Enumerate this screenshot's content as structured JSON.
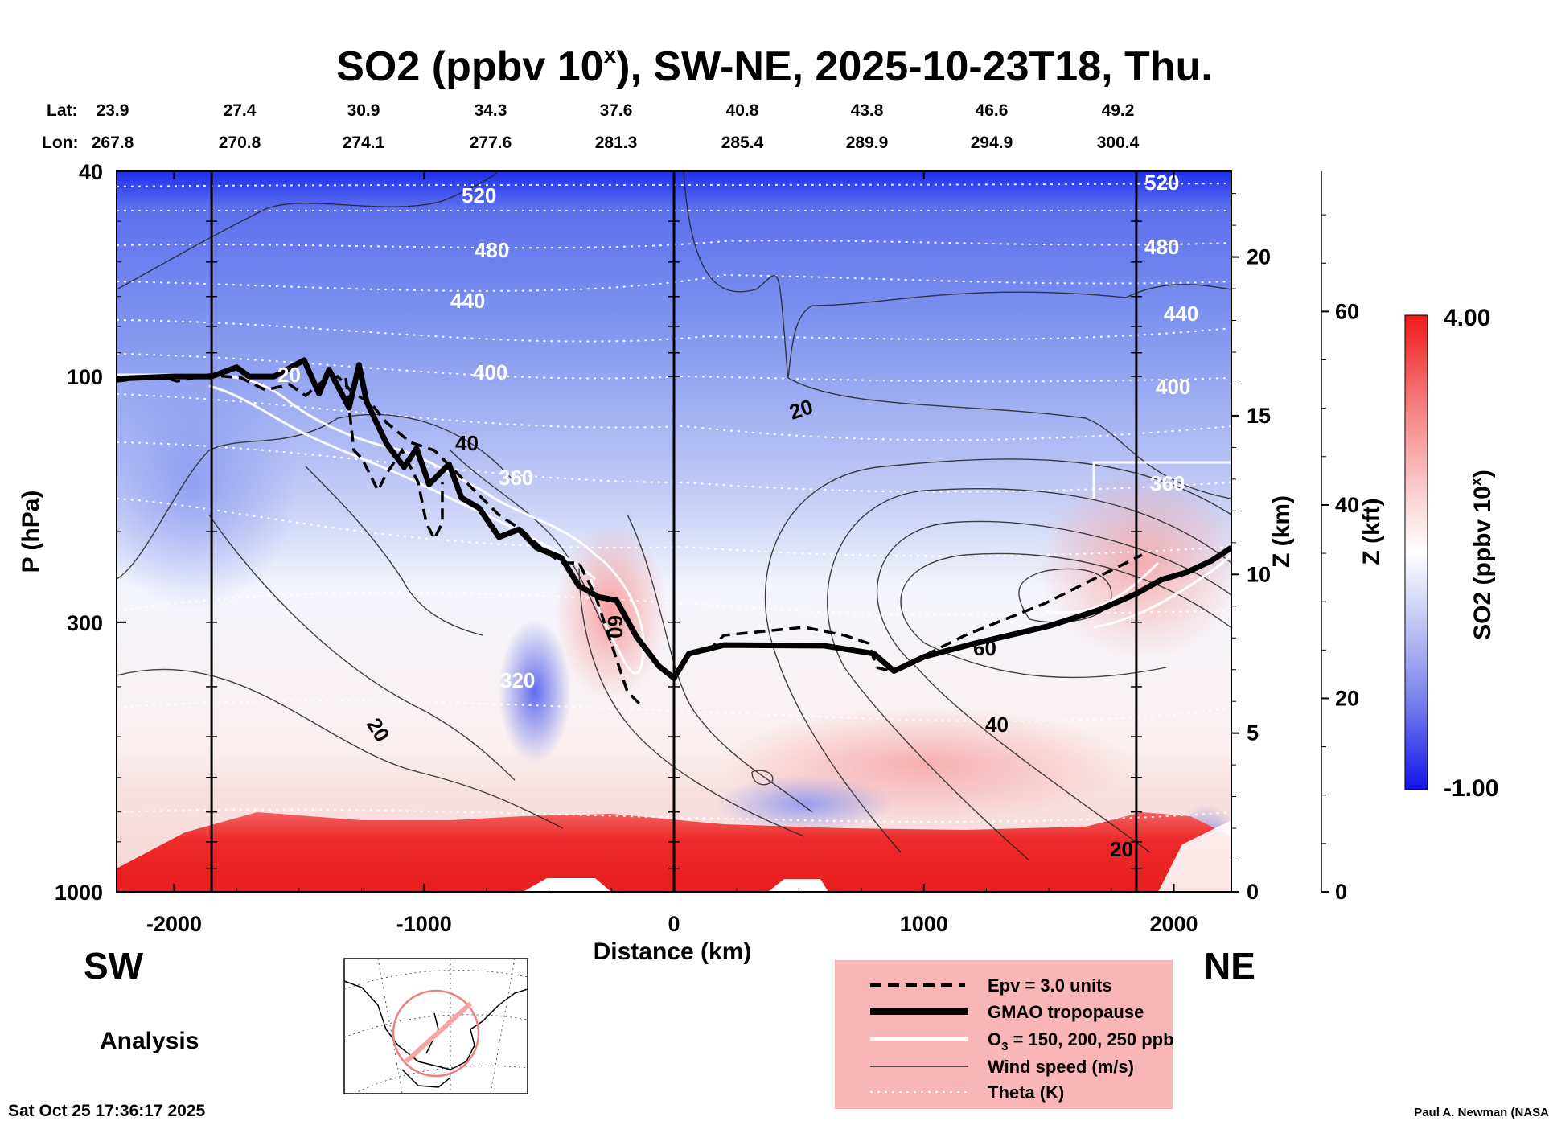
{
  "title": {
    "main": "SO2 (ppbv 10",
    "sup": "x",
    "rest": "), SW-NE, 2025-10-23T18, Thu."
  },
  "lat": {
    "label": "Lat:",
    "values": [
      "23.9",
      "27.4",
      "30.9",
      "34.3",
      "37.6",
      "40.8",
      "43.8",
      "46.6",
      "49.2"
    ]
  },
  "lon": {
    "label": "Lon:",
    "values": [
      "267.8",
      "270.8",
      "274.1",
      "277.6",
      "281.3",
      "285.4",
      "289.9",
      "294.9",
      "300.4"
    ]
  },
  "colors": {
    "low": "#1e28e6",
    "mid": "#ffffff",
    "high": "#ef2020",
    "panel": "#f9b6b6",
    "black": "#000000"
  },
  "chart_data": {
    "type": "heatmap",
    "title": "SO2 (ppbv 10^x), SW-NE, 2025-10-23T18, Thu.",
    "xlabel": "Distance (km)",
    "ylabel": "P (hPa)",
    "x_ticks": [
      "-2000",
      "-1000",
      "0",
      "1000",
      "2000"
    ],
    "x_tick_values": [
      -2000,
      -1000,
      0,
      1000,
      2000
    ],
    "xlim": [
      -2230,
      2230
    ],
    "y_ticks": [
      "40",
      "100",
      "300",
      "1000"
    ],
    "y_tick_values": [
      40,
      100,
      300,
      1000
    ],
    "ylim_hpa": [
      1000,
      40
    ],
    "y_scale": "log",
    "z_km": {
      "label": "Z (km)",
      "ticks": [
        "20",
        "15",
        "10",
        "5",
        "0"
      ],
      "values": [
        20,
        15,
        10,
        5,
        0
      ]
    },
    "z_kft": {
      "label": "Z (kft)",
      "ticks": [
        "60",
        "40",
        "20",
        "0"
      ],
      "values": [
        60,
        40,
        20,
        0
      ]
    },
    "colorbar": {
      "label_main": "SO2 (ppbv 10",
      "label_sup": "x",
      "label_end": ")",
      "max": "4.00",
      "min": "-1.00"
    },
    "section_lines_km": [
      -1850,
      0,
      1850
    ],
    "side_labels": {
      "left": "SW",
      "right": "NE"
    },
    "contour_labels": {
      "theta": [
        "520",
        "480",
        "440",
        "400",
        "520",
        "480",
        "440",
        "400",
        "360",
        "360",
        "320"
      ],
      "wind": [
        "20",
        "20",
        "40",
        "60",
        "20",
        "60",
        "40",
        "20"
      ]
    },
    "legend": [
      {
        "style": "dashed",
        "label": "Epv = 3.0 units"
      },
      {
        "style": "thick",
        "label": "GMAO tropopause"
      },
      {
        "style": "white",
        "label_main": "O",
        "label_sub": "3",
        "label_rest": " = 150, 200, 250 ppb"
      },
      {
        "style": "thin",
        "label": "Wind speed (m/s)"
      },
      {
        "style": "dotted",
        "label": "Theta (K)"
      }
    ],
    "tropopause_km_hpa": [
      [
        -2230,
        101
      ],
      [
        -2000,
        100
      ],
      [
        -1850,
        100
      ],
      [
        -1750,
        96
      ],
      [
        -1700,
        100
      ],
      [
        -1600,
        100
      ],
      [
        -1480,
        93
      ],
      [
        -1420,
        108
      ],
      [
        -1380,
        97
      ],
      [
        -1300,
        115
      ],
      [
        -1260,
        95
      ],
      [
        -1230,
        112
      ],
      [
        -1150,
        135
      ],
      [
        -1080,
        150
      ],
      [
        -1030,
        138
      ],
      [
        -980,
        162
      ],
      [
        -900,
        148
      ],
      [
        -850,
        172
      ],
      [
        -780,
        180
      ],
      [
        -700,
        205
      ],
      [
        -620,
        198
      ],
      [
        -550,
        215
      ],
      [
        -450,
        225
      ],
      [
        -380,
        255
      ],
      [
        -300,
        268
      ],
      [
        -230,
        272
      ],
      [
        -150,
        320
      ],
      [
        -60,
        365
      ],
      [
        0,
        385
      ],
      [
        60,
        345
      ],
      [
        200,
        332
      ],
      [
        600,
        333
      ],
      [
        800,
        345
      ],
      [
        880,
        373
      ],
      [
        1000,
        350
      ],
      [
        1200,
        330
      ],
      [
        1500,
        305
      ],
      [
        1700,
        284
      ],
      [
        1850,
        264
      ],
      [
        1950,
        248
      ],
      [
        2050,
        240
      ],
      [
        2150,
        228
      ],
      [
        2230,
        215
      ]
    ]
  },
  "footer": {
    "side_label": "Analysis",
    "timestamp": "Sat Oct 25 17:36:17 2025",
    "credit": "Paul A. Newman (NASA"
  }
}
